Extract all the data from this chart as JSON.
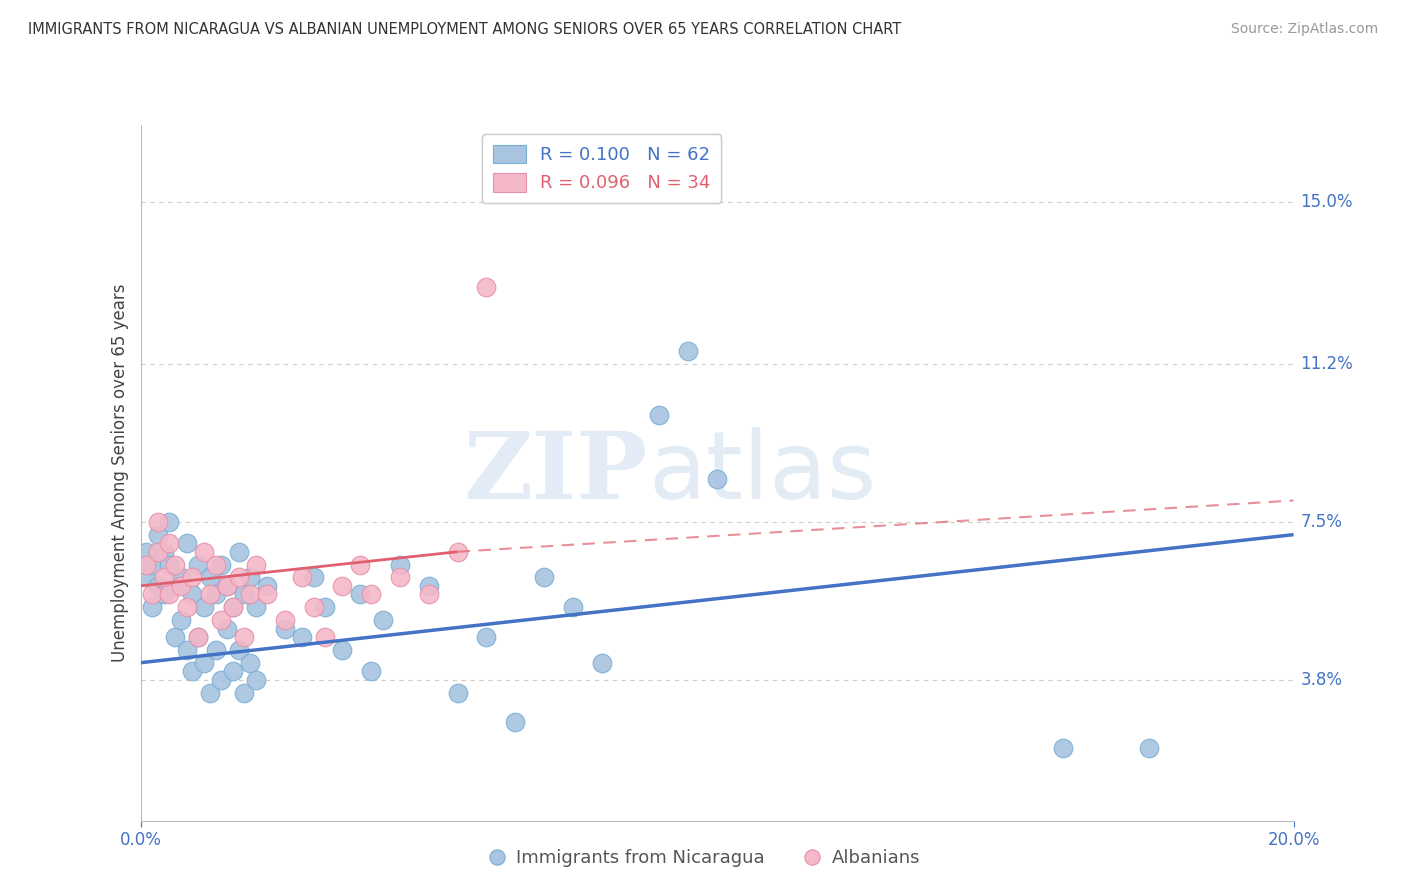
{
  "title": "IMMIGRANTS FROM NICARAGUA VS ALBANIAN UNEMPLOYMENT AMONG SENIORS OVER 65 YEARS CORRELATION CHART",
  "source": "Source: ZipAtlas.com",
  "ylabel": "Unemployment Among Seniors over 65 years",
  "xlabel_ticks": [
    "0.0%",
    "20.0%"
  ],
  "ytick_labels": [
    "3.8%",
    "7.5%",
    "11.2%",
    "15.0%"
  ],
  "ytick_values": [
    0.038,
    0.075,
    0.112,
    0.15
  ],
  "xlim": [
    0.0,
    0.2
  ],
  "ylim": [
    0.005,
    0.168
  ],
  "legend_blue_label": "R = 0.100   N = 62",
  "legend_pink_label": "R = 0.096   N = 34",
  "legend_blue_series": "Immigrants from Nicaragua",
  "legend_pink_series": "Albanians",
  "watermark_zip": "ZIP",
  "watermark_atlas": "atlas",
  "blue_color": "#a8c4e0",
  "blue_edge_color": "#7aafd4",
  "pink_color": "#f4b8c8",
  "pink_edge_color": "#e890a8",
  "blue_line_color": "#4472C4",
  "pink_line_color": "#E06070",
  "blue_scatter": [
    [
      0.001,
      0.068
    ],
    [
      0.001,
      0.062
    ],
    [
      0.002,
      0.065
    ],
    [
      0.002,
      0.055
    ],
    [
      0.003,
      0.072
    ],
    [
      0.003,
      0.06
    ],
    [
      0.004,
      0.068
    ],
    [
      0.004,
      0.058
    ],
    [
      0.005,
      0.065
    ],
    [
      0.005,
      0.075
    ],
    [
      0.006,
      0.06
    ],
    [
      0.006,
      0.048
    ],
    [
      0.007,
      0.062
    ],
    [
      0.007,
      0.052
    ],
    [
      0.008,
      0.07
    ],
    [
      0.008,
      0.045
    ],
    [
      0.009,
      0.058
    ],
    [
      0.009,
      0.04
    ],
    [
      0.01,
      0.065
    ],
    [
      0.01,
      0.048
    ],
    [
      0.011,
      0.055
    ],
    [
      0.011,
      0.042
    ],
    [
      0.012,
      0.062
    ],
    [
      0.012,
      0.035
    ],
    [
      0.013,
      0.058
    ],
    [
      0.013,
      0.045
    ],
    [
      0.014,
      0.065
    ],
    [
      0.014,
      0.038
    ],
    [
      0.015,
      0.06
    ],
    [
      0.015,
      0.05
    ],
    [
      0.016,
      0.055
    ],
    [
      0.016,
      0.04
    ],
    [
      0.017,
      0.068
    ],
    [
      0.017,
      0.045
    ],
    [
      0.018,
      0.058
    ],
    [
      0.018,
      0.035
    ],
    [
      0.019,
      0.062
    ],
    [
      0.019,
      0.042
    ],
    [
      0.02,
      0.055
    ],
    [
      0.02,
      0.038
    ],
    [
      0.022,
      0.06
    ],
    [
      0.025,
      0.05
    ],
    [
      0.028,
      0.048
    ],
    [
      0.03,
      0.062
    ],
    [
      0.032,
      0.055
    ],
    [
      0.035,
      0.045
    ],
    [
      0.038,
      0.058
    ],
    [
      0.04,
      0.04
    ],
    [
      0.042,
      0.052
    ],
    [
      0.045,
      0.065
    ],
    [
      0.05,
      0.06
    ],
    [
      0.055,
      0.035
    ],
    [
      0.06,
      0.048
    ],
    [
      0.065,
      0.028
    ],
    [
      0.07,
      0.062
    ],
    [
      0.075,
      0.055
    ],
    [
      0.08,
      0.042
    ],
    [
      0.09,
      0.1
    ],
    [
      0.095,
      0.115
    ],
    [
      0.1,
      0.085
    ],
    [
      0.16,
      0.022
    ],
    [
      0.175,
      0.022
    ]
  ],
  "pink_scatter": [
    [
      0.001,
      0.065
    ],
    [
      0.002,
      0.058
    ],
    [
      0.003,
      0.075
    ],
    [
      0.003,
      0.068
    ],
    [
      0.004,
      0.062
    ],
    [
      0.005,
      0.058
    ],
    [
      0.005,
      0.07
    ],
    [
      0.006,
      0.065
    ],
    [
      0.007,
      0.06
    ],
    [
      0.008,
      0.055
    ],
    [
      0.009,
      0.062
    ],
    [
      0.01,
      0.048
    ],
    [
      0.011,
      0.068
    ],
    [
      0.012,
      0.058
    ],
    [
      0.013,
      0.065
    ],
    [
      0.014,
      0.052
    ],
    [
      0.015,
      0.06
    ],
    [
      0.016,
      0.055
    ],
    [
      0.017,
      0.062
    ],
    [
      0.018,
      0.048
    ],
    [
      0.019,
      0.058
    ],
    [
      0.02,
      0.065
    ],
    [
      0.022,
      0.058
    ],
    [
      0.025,
      0.052
    ],
    [
      0.028,
      0.062
    ],
    [
      0.03,
      0.055
    ],
    [
      0.032,
      0.048
    ],
    [
      0.035,
      0.06
    ],
    [
      0.038,
      0.065
    ],
    [
      0.04,
      0.058
    ],
    [
      0.045,
      0.062
    ],
    [
      0.05,
      0.058
    ],
    [
      0.055,
      0.068
    ],
    [
      0.06,
      0.13
    ]
  ],
  "blue_trendline": [
    [
      0.0,
      0.042
    ],
    [
      0.2,
      0.072
    ]
  ],
  "pink_trendline_solid": [
    [
      0.0,
      0.06
    ],
    [
      0.055,
      0.068
    ]
  ],
  "pink_trendline_dash": [
    [
      0.055,
      0.068
    ],
    [
      0.2,
      0.08
    ]
  ]
}
